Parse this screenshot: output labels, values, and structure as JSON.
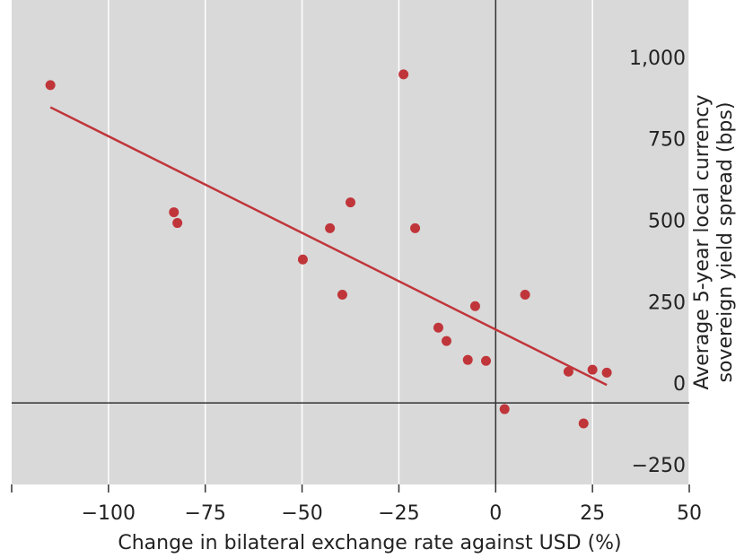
{
  "chart_data": {
    "type": "scatter",
    "xlabel": "Change in bilateral exchange rate against USD (%)",
    "ylabel": "Average 5-year local currency sovereign yield spread (bps)",
    "xlim": [
      -125,
      50
    ],
    "ylim": [
      -250,
      1236
    ],
    "xticks": [
      {
        "value": -100,
        "label": "−100"
      },
      {
        "value": -75,
        "label": "−75"
      },
      {
        "value": -50,
        "label": "−50"
      },
      {
        "value": -25,
        "label": "−25"
      },
      0,
      25,
      50
    ],
    "yticks": [
      {
        "value": -250,
        "label": "−250"
      },
      0,
      250,
      500,
      750,
      {
        "value": 1000,
        "label": "1,000"
      }
    ],
    "grid": true,
    "series": [
      {
        "color": "#c0353a",
        "x": [
          -115,
          -23.8,
          -83.1,
          -82.2,
          -37.5,
          -42.8,
          -20.8,
          -49.8,
          -39.6,
          -14.8,
          -12.7,
          -5.3,
          -7.2,
          -2.5,
          7.6,
          18.8,
          25,
          28.7,
          2.3,
          22.7
        ],
        "values": [
          975,
          1008,
          585,
          552,
          615,
          536,
          536,
          440,
          332,
          231,
          190,
          297,
          132,
          129,
          332,
          96,
          102,
          93,
          -19,
          -63
        ]
      }
    ],
    "trendline": {
      "color": "#c0353a",
      "x": [
        -115,
        28.7
      ],
      "values": [
        907,
        55
      ]
    }
  }
}
